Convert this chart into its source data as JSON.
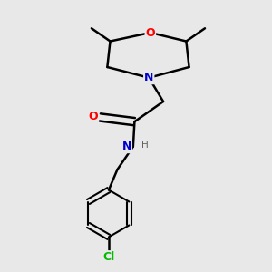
{
  "background_color": "#e8e8e8",
  "bond_color": "#000000",
  "atom_colors": {
    "O": "#ff0000",
    "N": "#0000cc",
    "Cl": "#00bb00",
    "C": "#000000",
    "H": "#606060"
  },
  "figsize": [
    3.0,
    3.0
  ],
  "dpi": 100,
  "scale": 1.0
}
